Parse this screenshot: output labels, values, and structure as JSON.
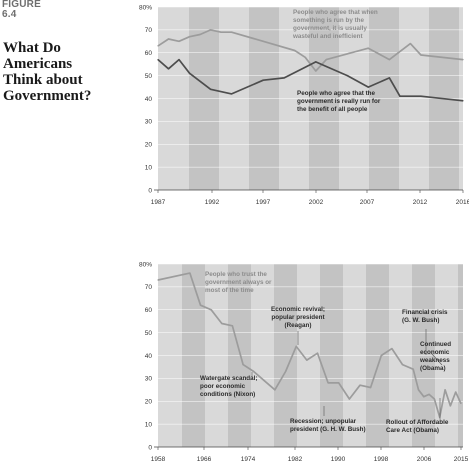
{
  "figure": {
    "label_line1": "FIGURE",
    "label_line2": "6.4",
    "title": "What Do Americans Think about Government?"
  },
  "colors": {
    "band_dark": "#c3c3c3",
    "band_light": "#d9d9d9",
    "line_dark": "#4d4d4d",
    "line_light": "#9c9c9c",
    "ann_dark": "#2b2b2b",
    "ann_light": "#8c8c8c"
  },
  "chart_data": [
    {
      "type": "line",
      "x_ticks": [
        "1987",
        "1992",
        "1997",
        "2002",
        "2007",
        "2012",
        "2016"
      ],
      "y_ticks": [
        "0",
        "10",
        "20",
        "30",
        "40",
        "50",
        "60",
        "70",
        "80%"
      ],
      "xlim": [
        1986.5,
        2016.5
      ],
      "ylim": [
        0,
        80
      ],
      "series": [
        {
          "color_key": "line_light",
          "x": [
            1987,
            1988,
            1989,
            1990,
            1991,
            1992,
            1993,
            1994,
            1997,
            2000,
            2001,
            2002,
            2003,
            2007,
            2009,
            2011,
            2012,
            2016
          ],
          "values": [
            63,
            66,
            65,
            67,
            68,
            70,
            69,
            69,
            65,
            61,
            58,
            52,
            57,
            62,
            57,
            64,
            59,
            57
          ]
        },
        {
          "color_key": "line_dark",
          "x": [
            1987,
            1988,
            1989,
            1990,
            1992,
            1994,
            1997,
            1999,
            2002,
            2003,
            2005,
            2007,
            2009,
            2010,
            2012,
            2016
          ],
          "values": [
            57,
            53,
            57,
            51,
            44,
            42,
            48,
            49,
            56,
            54,
            50,
            45,
            49,
            41,
            41,
            39
          ]
        }
      ],
      "annotations": [
        {
          "color_key": "ann_light",
          "lines": [
            "People who agree that when",
            "something is run by the",
            "government, it is usually",
            "wasteful and inefficient"
          ]
        },
        {
          "color_key": "ann_dark",
          "lines": [
            "People who agree that the",
            "government is really run for",
            "the benefit of all people"
          ]
        }
      ]
    },
    {
      "type": "line",
      "x_ticks": [
        "1958",
        "1966",
        "1974",
        "1982",
        "1990",
        "1998",
        "2006",
        "2015"
      ],
      "y_ticks": [
        "0",
        "10",
        "20",
        "30",
        "40",
        "50",
        "60",
        "70",
        "80%"
      ],
      "xlim": [
        1958,
        2015
      ],
      "ylim": [
        0,
        80
      ],
      "series": [
        {
          "color_key": "line_light",
          "x": [
            1958,
            1964,
            1966,
            1968,
            1970,
            1972,
            1974,
            1976,
            1978,
            1980,
            1982,
            1984,
            1986,
            1988,
            1990,
            1992,
            1994,
            1996,
            1998,
            2000,
            2002,
            2004,
            2006,
            2007,
            2008,
            2009,
            2010,
            2011,
            2012,
            2013,
            2014,
            2015
          ],
          "values": [
            73,
            76,
            62,
            60,
            54,
            53,
            36,
            33,
            29,
            25,
            33,
            44,
            38,
            41,
            28,
            28,
            21,
            27,
            26,
            40,
            43,
            36,
            34,
            25,
            22,
            23,
            21,
            13,
            25,
            18,
            24,
            19
          ]
        }
      ],
      "annotations": [
        {
          "color_key": "ann_light",
          "lines": [
            "People who trust the",
            "government always or",
            "most of the time"
          ]
        },
        {
          "color_key": "ann_dark",
          "lines": [
            "Economic revival;",
            "popular president",
            "(Reagan)"
          ]
        },
        {
          "color_key": "ann_dark",
          "lines": [
            "Watergate scandal;",
            "poor economic",
            "conditions (Nixon)"
          ]
        },
        {
          "color_key": "ann_dark",
          "lines": [
            "Recession; unpopular",
            "president (G. H. W. Bush)"
          ]
        },
        {
          "color_key": "ann_dark",
          "lines": [
            "Financial crisis",
            "(G. W. Bush)"
          ]
        },
        {
          "color_key": "ann_dark",
          "lines": [
            "Continued",
            "economic",
            "weakness",
            "(Obama)"
          ]
        },
        {
          "color_key": "ann_dark",
          "lines": [
            "Rollout of Affordable",
            "Care Act (Obama)"
          ]
        }
      ]
    }
  ]
}
